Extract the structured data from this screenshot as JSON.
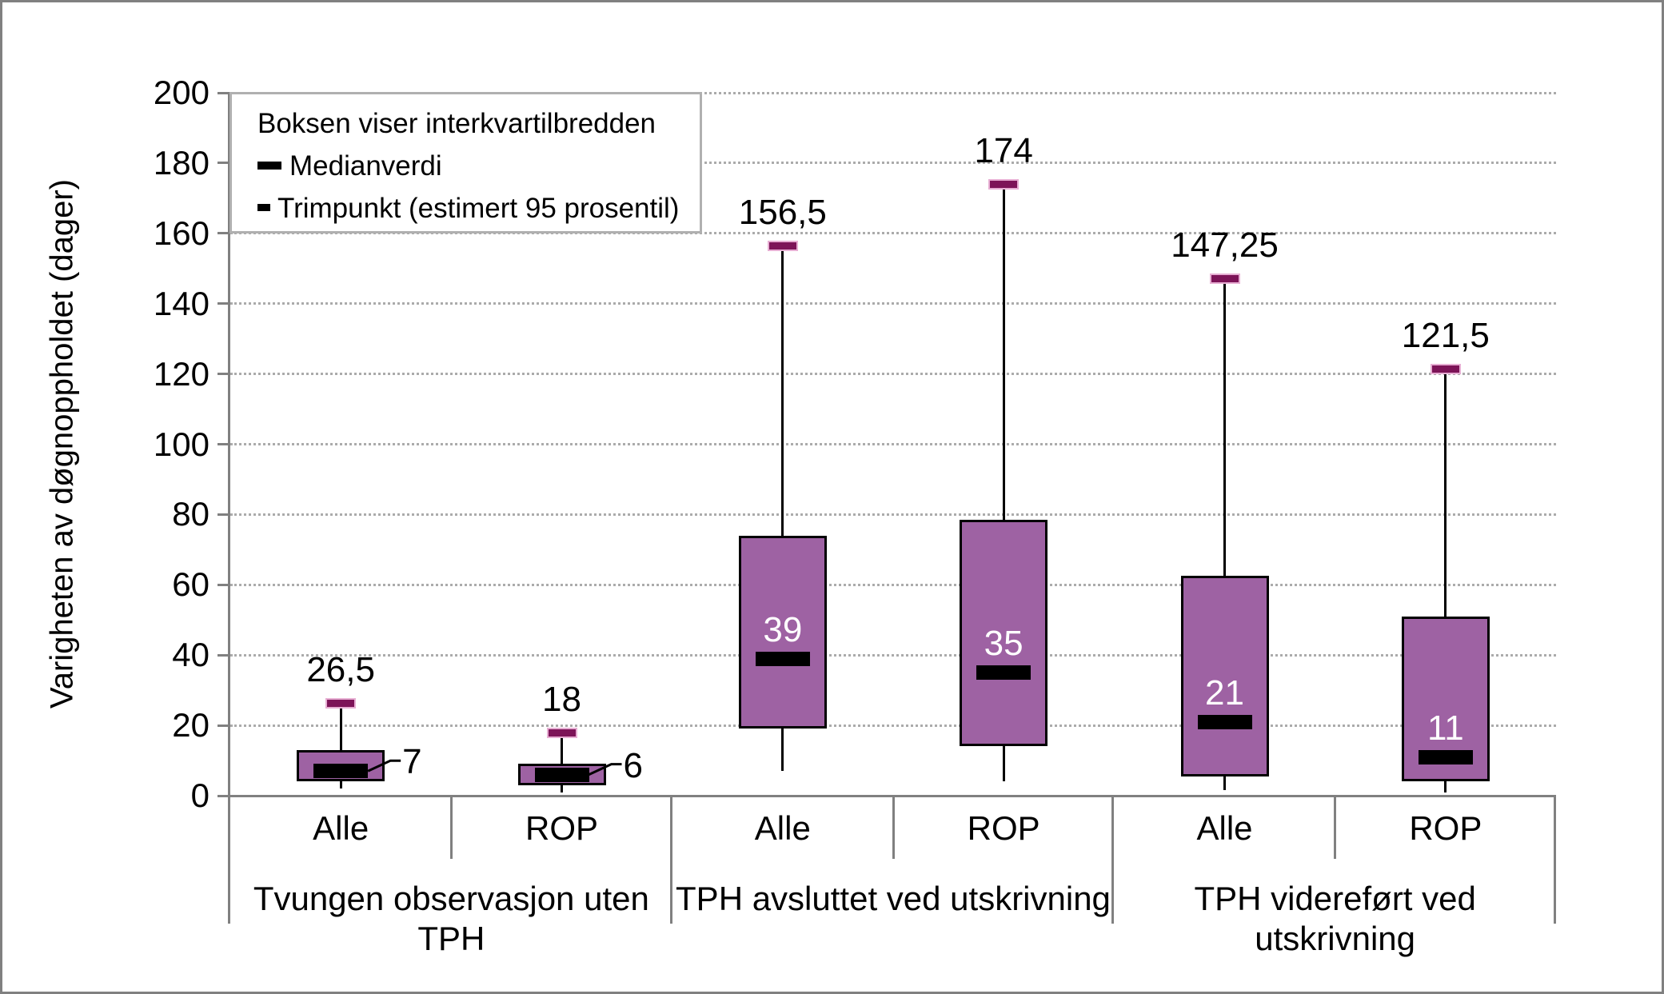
{
  "chart_data": {
    "type": "boxplot",
    "ylabel": "Varigheten av døgnoppholdet (dager)",
    "ylim": [
      0,
      200
    ],
    "yticks": [
      0,
      20,
      40,
      60,
      80,
      100,
      120,
      140,
      160,
      180,
      200
    ],
    "grid": "horizontal-dotted",
    "legend": {
      "position": "top-left",
      "box_note": "Boksen viser interkvartilbredden",
      "median_label": "Medianverdi",
      "trim_label": "Trimpunkt (estimert 95 prosentil)"
    },
    "groups": [
      {
        "label": "Tvungen observasjon uten TPH",
        "boxes": [
          {
            "category": "Alle",
            "low": 2,
            "q1": 4,
            "median": 7,
            "q3": 13,
            "high": 26.5,
            "high_label": "26,5",
            "median_label": "7",
            "median_label_position": "outside"
          },
          {
            "category": "ROP",
            "low": 1,
            "q1": 3,
            "median": 6,
            "q3": 9,
            "high": 18,
            "high_label": "18",
            "median_label": "6",
            "median_label_position": "outside"
          }
        ]
      },
      {
        "label": "TPH avsluttet ved utskrivning",
        "boxes": [
          {
            "category": "Alle",
            "low": 7,
            "q1": 19,
            "median": 39,
            "q3": 74,
            "high": 156.5,
            "high_label": "156,5",
            "median_label": "39",
            "median_label_position": "inside"
          },
          {
            "category": "ROP",
            "low": 4,
            "q1": 14,
            "median": 35,
            "q3": 78.5,
            "high": 174,
            "high_label": "174",
            "median_label": "35",
            "median_label_position": "inside"
          }
        ]
      },
      {
        "label": "TPH videreført ved utskrivning",
        "boxes": [
          {
            "category": "Alle",
            "low": 1.5,
            "q1": 5.5,
            "median": 21,
            "q3": 62.5,
            "high": 147.25,
            "high_label": "147,25",
            "median_label": "21",
            "median_label_position": "inside"
          },
          {
            "category": "ROP",
            "low": 1,
            "q1": 4,
            "median": 11,
            "q3": 51,
            "high": 121.5,
            "high_label": "121,5",
            "median_label": "11",
            "median_label_position": "inside"
          }
        ]
      }
    ],
    "colors": {
      "box_fill": "#9E62A3",
      "box_border": "#000000",
      "median_bar": "#000000",
      "median_text_inside": "#FFFFFF",
      "trim_marker_fill": "#7D1458",
      "trim_marker_border": "#E7AED3",
      "gridline": "#ABABAB",
      "axis": "#808080",
      "legend_border": "#B0B0B0",
      "frame_border": "#808080",
      "label_text": "#000000"
    }
  }
}
